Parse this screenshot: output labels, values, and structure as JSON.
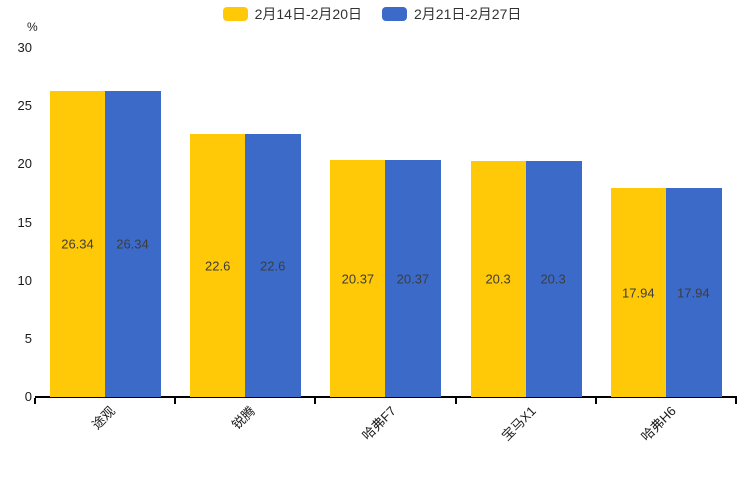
{
  "colors": {
    "series1": "#FFC907",
    "series2": "#3B6AC9",
    "axis": "#000000",
    "value_label": "#3d3d3d",
    "tick_label": "#1a1a1a"
  },
  "chart_data": {
    "type": "bar",
    "title": "",
    "categories": [
      "途观",
      "锐腾",
      "哈弗F7",
      "宝马X1",
      "哈弗H6"
    ],
    "series": [
      {
        "name": "2月14日-2月20日",
        "color": "#FFC907",
        "values": [
          26.34,
          22.6,
          20.37,
          20.3,
          17.94
        ]
      },
      {
        "name": "2月21日-2月27日",
        "color": "#3B6AC9",
        "values": [
          26.34,
          22.6,
          20.37,
          20.3,
          17.94
        ]
      }
    ],
    "value_labels": [
      "26.34",
      "22.6",
      "20.37",
      "20.3",
      "17.94"
    ],
    "xlabel": "",
    "ylabel": "%",
    "ylim": [
      0,
      30
    ],
    "yticks": [
      "0",
      "5",
      "10",
      "15",
      "20",
      "25",
      "30"
    ],
    "grid": false,
    "legend_position": "top"
  }
}
